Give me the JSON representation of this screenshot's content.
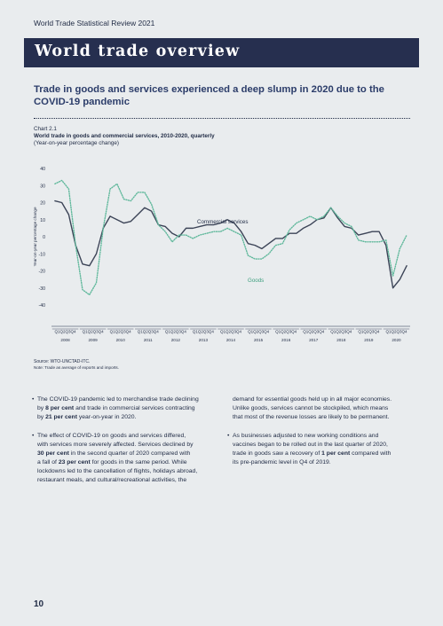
{
  "page": {
    "running_header": "World Trade Statistical Review 2021",
    "banner_title": "World trade overview",
    "headline": "Trade in goods and services experienced a deep slump in 2020 due to the COVID-19 pandemic",
    "page_number": "10"
  },
  "chart_meta": {
    "label": "Chart 2.1",
    "title": "World trade in goods and commercial services, 2010-2020, quarterly",
    "subtitle": "(Year-on-year percentage change)",
    "source": "Source: WTO-UNCTAD-ITC.",
    "note": "Note: Trade as average of exports and imports."
  },
  "chart_data": {
    "type": "line",
    "ylabel": "Year-on-year percentage change",
    "ylim": [
      -40,
      40
    ],
    "yticks": [
      -40,
      -30,
      -20,
      -10,
      0,
      10,
      20,
      30,
      40
    ],
    "grid": false,
    "quarter_label": "Q1Q2Q3Q4",
    "years": [
      "2008",
      "2009",
      "2010",
      "2011",
      "2012",
      "2013",
      "2014",
      "2015",
      "2016",
      "2017",
      "2018",
      "2019",
      "2020"
    ],
    "series": [
      {
        "name": "Commercial services",
        "style": "solid",
        "color": "#3c4457",
        "values": [
          21,
          20,
          13,
          -5,
          -16,
          -17,
          -10,
          5,
          12,
          10,
          8,
          9,
          13,
          17,
          15,
          7,
          6,
          2,
          0,
          5,
          5,
          6,
          7,
          7,
          8,
          10,
          8,
          3,
          -4,
          -5,
          -7,
          -4,
          -1,
          -1,
          2,
          2,
          5,
          7,
          10,
          11,
          17,
          11,
          6,
          5,
          1,
          2,
          3,
          3,
          -5,
          -30,
          -25,
          -17
        ]
      },
      {
        "name": "Goods",
        "style": "dotted",
        "color": "#5fb89b",
        "values": [
          31,
          33,
          28,
          -5,
          -31,
          -34,
          -27,
          5,
          28,
          31,
          22,
          21,
          26,
          26,
          19,
          7,
          3,
          -3,
          1,
          1,
          -1,
          1,
          2,
          3,
          3,
          5,
          3,
          1,
          -11,
          -13,
          -13,
          -10,
          -5,
          -4,
          4,
          8,
          10,
          12,
          10,
          12,
          17,
          12,
          8,
          6,
          -2,
          -3,
          -3,
          -3,
          -2,
          -23,
          -7,
          1
        ]
      }
    ],
    "annotations": [
      {
        "text": "Commercial services",
        "series": "Commercial services"
      },
      {
        "text": "Goods",
        "series": "Goods"
      }
    ]
  },
  "bullets": {
    "b1": {
      "t1": "The COVID-19 pandemic led to merchandise trade declining",
      "t2a": "by ",
      "t2b": "8 per cent",
      "t2c": " and trade in commercial services contracting",
      "t3a": "by ",
      "t3b": "21 per cent",
      "t3c": " year-on-year in 2020."
    },
    "b2": {
      "t1": "The effect of COVID-19 on goods and services differed,",
      "t2": "with services more severely affected. Services declined by",
      "t3a": "30 per cent",
      "t3b": " in the second quarter of 2020 compared with",
      "t4a": "a fall of ",
      "t4b": "23 per cent",
      "t4c": " for goods in the same period. While",
      "t5": "lockdowns led to the cancellation of flights, holidays abroad,",
      "t6": "restaurant meals, and cultural/recreational activities, the"
    },
    "b3": {
      "t1": "demand for essential goods held up in all major economies.",
      "t2": "Unlike goods, services cannot be stockpiled, which means",
      "t3": "that most of the revenue losses are likely to be permanent."
    },
    "b4": {
      "t1": "As businesses adjusted to new working conditions and",
      "t2": "vaccines began to be rolled out in the last quarter of 2020,",
      "t3a": "trade in goods saw a recovery of ",
      "t3b": "1 per cent",
      "t3c": " compared with",
      "t4": "its pre-pandemic level in Q4 of 2019."
    }
  }
}
